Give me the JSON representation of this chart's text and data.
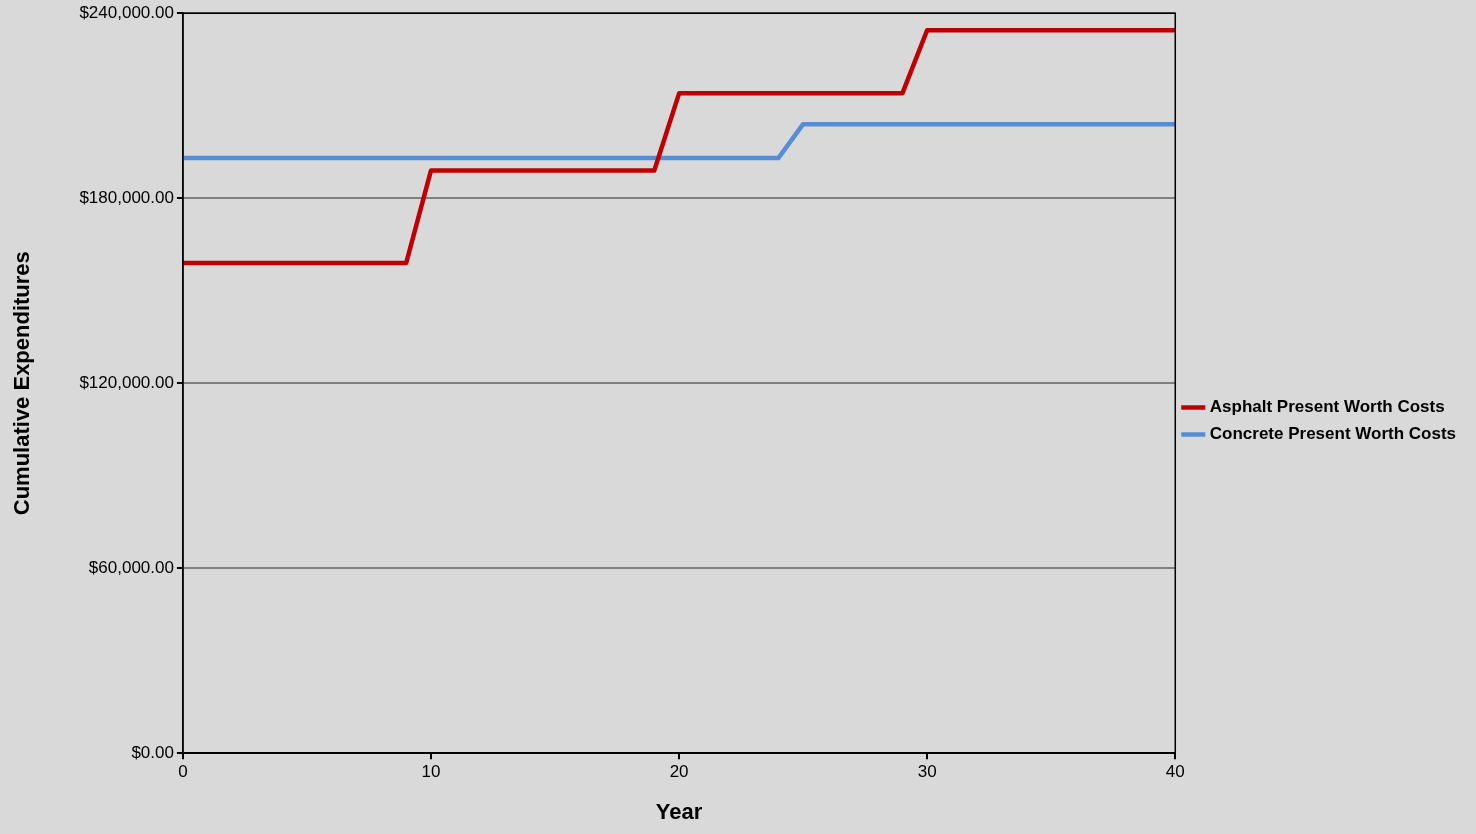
{
  "chart_data": {
    "type": "line",
    "xlabel": "Year",
    "ylabel": "Cumulative Expenditures",
    "series": [
      {
        "name": "Asphalt Present Worth Costs",
        "color": "#c00000",
        "x": [
          0,
          9,
          10,
          19,
          20,
          29,
          30,
          40
        ],
        "values": [
          159000,
          159000,
          189000,
          189000,
          214000,
          214000,
          234500,
          234500
        ]
      },
      {
        "name": "Concrete Present Worth Costs",
        "color": "#558ed5",
        "x": [
          0,
          24,
          25,
          40
        ],
        "values": [
          193000,
          193000,
          204000,
          204000
        ]
      }
    ],
    "xlim": [
      0,
      40
    ],
    "xticks": [
      0,
      10,
      20,
      30,
      40
    ],
    "ylim": [
      0,
      240000
    ],
    "yticks": [
      {
        "value": 0,
        "label": "$0.00"
      },
      {
        "value": 60000,
        "label": "$60,000.00"
      },
      {
        "value": 120000,
        "label": "$120,000.00"
      },
      {
        "value": 180000,
        "label": "$180,000.00"
      },
      {
        "value": 240000,
        "label": "$240,000.00"
      }
    ],
    "grid": "y",
    "legend": "right",
    "marker": "none",
    "line_style": "solid"
  }
}
